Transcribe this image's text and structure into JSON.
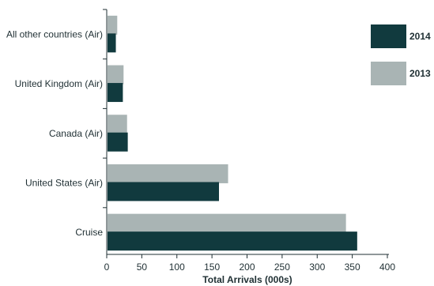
{
  "chart_data": {
    "type": "bar",
    "orientation": "horizontal",
    "categories": [
      "All other countries (Air)",
      "United Kingdom (Air)",
      "Canada (Air)",
      "United States (Air)",
      "Cruise"
    ],
    "series": [
      {
        "name": "2014",
        "color": "#113a3e",
        "values": [
          13,
          23,
          30,
          160,
          357
        ]
      },
      {
        "name": "2013",
        "color": "#a9b4b4",
        "values": [
          15,
          24,
          29,
          173,
          341
        ]
      }
    ],
    "xlabel": "Total Arrivals (000s)",
    "ylabel": "",
    "xlim": [
      0,
      400
    ],
    "xticks": [
      "0",
      "50",
      "100",
      "150",
      "200",
      "250",
      "300",
      "350",
      "400"
    ],
    "grid": false,
    "legend_position": "top-right"
  }
}
